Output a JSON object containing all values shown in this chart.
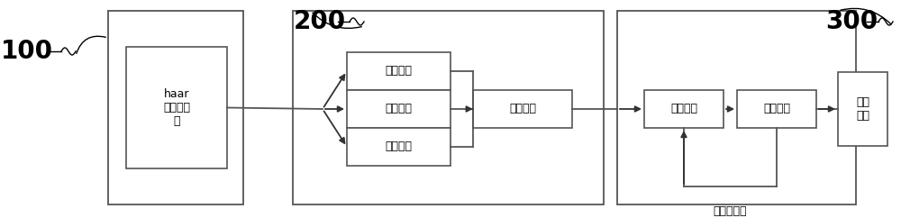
{
  "bg_color": "#ffffff",
  "line_color": "#555555",
  "label_100": "100",
  "label_200": "200",
  "label_300": "300",
  "box_haar": "haar\n级联分类\n器",
  "box_quanshen": "全身验证",
  "box_xiashen1": "下身验证",
  "box_xiashen2": "下身验证",
  "box_zonghe": "综合验证",
  "box_tezheng_calc": "特征计算",
  "box_tezheng_match": "特征匹配",
  "box_output": "输出\n行人",
  "label_guoqu": "过去的特征",
  "figsize": [
    10.0,
    2.42
  ],
  "dpi": 100,
  "font_size_label": 10,
  "font_size_box": 9,
  "font_size_num": 20
}
